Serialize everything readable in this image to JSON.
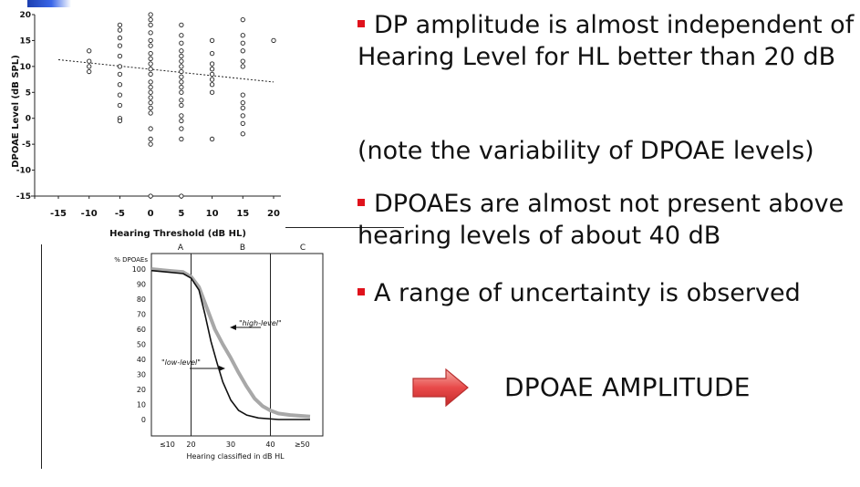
{
  "slide": {
    "bullets": [
      "DP amplitude is almost independent of Hearing Level for HL better than 20 dB",
      "DPOAEs are almost not present above hearing levels of about 40 dB",
      "A range of uncertainty is observed"
    ],
    "note": "(note the variability of DPOAE levels)",
    "arrow_label": "DPOAE AMPLITUDE",
    "colors": {
      "bullet": "#e0121c",
      "arrow": "#e84a4a",
      "accent": "#2a55d8"
    },
    "icons": [
      "right-arrow-icon"
    ]
  },
  "chart_data": [
    {
      "type": "scatter",
      "xlabel": "Hearing Threshold (dB HL)",
      "ylabel": "DPOAE Level (dB SPL)",
      "xlim": [
        -15,
        20
      ],
      "ylim": [
        -15,
        20
      ],
      "x_ticks": [
        "-15",
        "-10",
        "-5",
        "0",
        "5",
        "10",
        "15",
        "20"
      ],
      "y_ticks": [
        "20",
        "15",
        "10",
        "5",
        "0",
        "-5",
        "-10",
        "-15"
      ],
      "points": [
        [
          -10,
          13
        ],
        [
          -10,
          11
        ],
        [
          -10,
          10
        ],
        [
          -10,
          9
        ],
        [
          -5,
          18
        ],
        [
          -5,
          17
        ],
        [
          -5,
          15.5
        ],
        [
          -5,
          14
        ],
        [
          -5,
          12
        ],
        [
          -5,
          10
        ],
        [
          -5,
          8.5
        ],
        [
          -5,
          6.5
        ],
        [
          -5,
          4.5
        ],
        [
          -5,
          2.5
        ],
        [
          -5,
          0
        ],
        [
          -5,
          -0.5
        ],
        [
          0,
          20
        ],
        [
          0,
          19
        ],
        [
          0,
          18
        ],
        [
          0,
          16.5
        ],
        [
          0,
          15
        ],
        [
          0,
          14
        ],
        [
          0,
          12.5
        ],
        [
          0,
          11.5
        ],
        [
          0,
          10.5
        ],
        [
          0,
          9.5
        ],
        [
          0,
          8.5
        ],
        [
          0,
          7
        ],
        [
          0,
          6
        ],
        [
          0,
          5
        ],
        [
          0,
          4
        ],
        [
          0,
          3
        ],
        [
          0,
          2
        ],
        [
          0,
          1
        ],
        [
          0,
          -2
        ],
        [
          0,
          -4
        ],
        [
          0,
          -5
        ],
        [
          0,
          -15
        ],
        [
          5,
          18
        ],
        [
          5,
          16
        ],
        [
          5,
          14.5
        ],
        [
          5,
          13
        ],
        [
          5,
          12
        ],
        [
          5,
          11
        ],
        [
          5,
          10
        ],
        [
          5,
          9
        ],
        [
          5,
          8
        ],
        [
          5,
          7
        ],
        [
          5,
          6
        ],
        [
          5,
          5
        ],
        [
          5,
          3.5
        ],
        [
          5,
          2.5
        ],
        [
          5,
          0.5
        ],
        [
          5,
          -0.5
        ],
        [
          5,
          -2
        ],
        [
          5,
          -4
        ],
        [
          5,
          -15
        ],
        [
          10,
          15
        ],
        [
          10,
          12.5
        ],
        [
          10,
          10.5
        ],
        [
          10,
          9.5
        ],
        [
          10,
          8.5
        ],
        [
          10,
          7.5
        ],
        [
          10,
          6.5
        ],
        [
          10,
          5
        ],
        [
          10,
          -4
        ],
        [
          15,
          19
        ],
        [
          15,
          16
        ],
        [
          15,
          14.5
        ],
        [
          15,
          13
        ],
        [
          15,
          11
        ],
        [
          15,
          10
        ],
        [
          15,
          4.5
        ],
        [
          15,
          3
        ],
        [
          15,
          2
        ],
        [
          15,
          0.5
        ],
        [
          15,
          -1
        ],
        [
          15,
          -3
        ],
        [
          20,
          15
        ]
      ],
      "trendline": {
        "style": "dashed",
        "from": [
          -15,
          11.3
        ],
        "to": [
          20,
          7
        ]
      },
      "grid": false
    },
    {
      "type": "line",
      "ylabel": "% DPOAEs",
      "xlabel": "Hearing classified in dB HL",
      "x_ticks": [
        "≤10",
        "20",
        "30",
        "40",
        "≥50"
      ],
      "y_ticks": [
        "100",
        "90",
        "80",
        "70",
        "60",
        "50",
        "40",
        "30",
        "20",
        "10",
        "0"
      ],
      "xlim": [
        10,
        50
      ],
      "ylim": [
        0,
        100
      ],
      "regions": [
        {
          "label": "A",
          "from": 10,
          "to": 20
        },
        {
          "label": "B",
          "from": 20,
          "to": 40
        },
        {
          "label": "C",
          "from": 40,
          "to": 50
        }
      ],
      "series": [
        {
          "name": "\"high-level\"",
          "color": "#a8a8a8",
          "points": [
            [
              10,
              100
            ],
            [
              14,
              99
            ],
            [
              18,
              98
            ],
            [
              20,
              95
            ],
            [
              22,
              88
            ],
            [
              24,
              74
            ],
            [
              26,
              60
            ],
            [
              28,
              50
            ],
            [
              30,
              41
            ],
            [
              32,
              31
            ],
            [
              34,
              22
            ],
            [
              36,
              14
            ],
            [
              38,
              9
            ],
            [
              40,
              6
            ],
            [
              42,
              4
            ],
            [
              45,
              3
            ],
            [
              50,
              2
            ]
          ]
        },
        {
          "name": "\"low-level\"",
          "color": "#111111",
          "points": [
            [
              10,
              99
            ],
            [
              14,
              98
            ],
            [
              18,
              97
            ],
            [
              20,
              94
            ],
            [
              22,
              86
            ],
            [
              23.5,
              70
            ],
            [
              25,
              52
            ],
            [
              26.5,
              38
            ],
            [
              28,
              25
            ],
            [
              30,
              13
            ],
            [
              32,
              6
            ],
            [
              34,
              3
            ],
            [
              37,
              1
            ],
            [
              42,
              0
            ],
            [
              50,
              0
            ]
          ]
        }
      ]
    }
  ]
}
